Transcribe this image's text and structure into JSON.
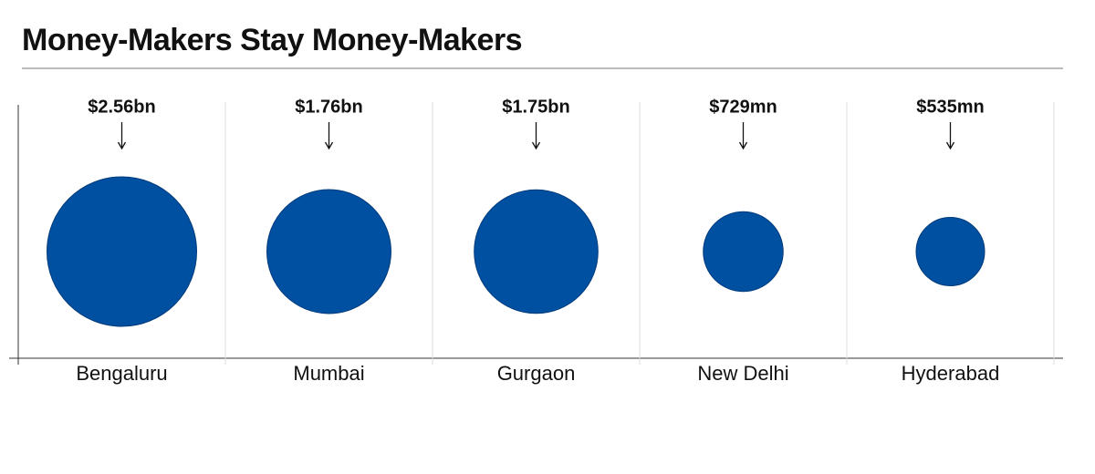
{
  "chart_data": {
    "type": "bubble",
    "title": "Money-Makers Stay Money-Makers",
    "categories": [
      "Bengaluru",
      "Mumbai",
      "Gurgaon",
      "New Delhi",
      "Hyderabad"
    ],
    "values": [
      2560000000,
      1760000000,
      1750000000,
      729000000,
      535000000
    ],
    "value_labels": [
      "$2.56bn",
      "$1.76bn",
      "$1.75bn",
      "$729mn",
      "$535mn"
    ],
    "color": "#0050a2"
  }
}
